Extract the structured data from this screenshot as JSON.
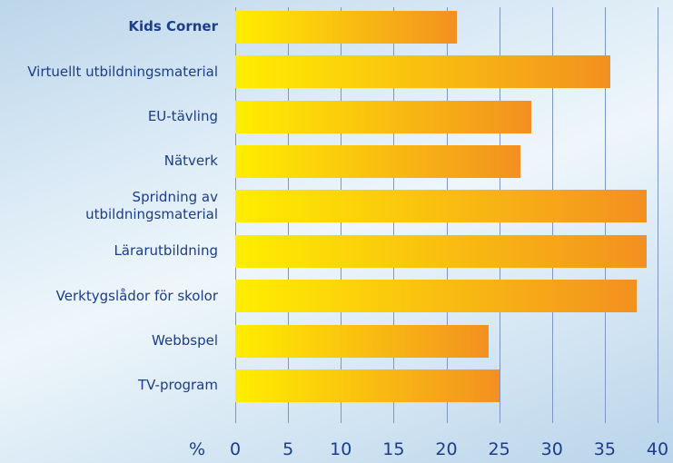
{
  "chart_data": {
    "type": "bar",
    "orientation": "horizontal",
    "categories": [
      "Kids Corner",
      "Virtuellt utbildningsmaterial",
      "EU-tävling",
      "Nätverk",
      "Spridning av utbildningsmaterial",
      "Lärarutbildning",
      "Verktygslådor för skolor",
      "Webbspel",
      "TV-program"
    ],
    "values": [
      21,
      35.5,
      28,
      27,
      39,
      39,
      38,
      24,
      25
    ],
    "color": [
      "#ffee00",
      "#f39020"
    ],
    "x_label": "%",
    "xlim": [
      0,
      40
    ],
    "xticks": [
      0,
      5,
      10,
      15,
      20,
      25,
      30,
      35,
      40
    ],
    "grid": true
  }
}
